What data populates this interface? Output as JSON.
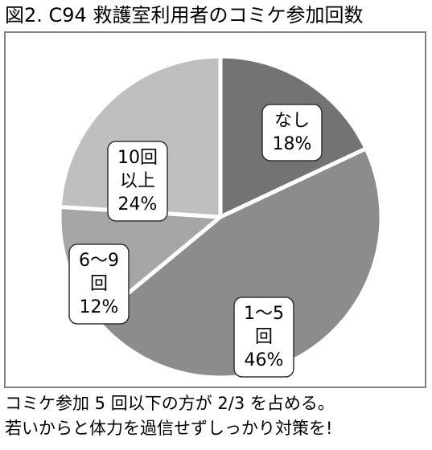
{
  "title": "図2. C94 救護室利用者のコミケ参加回数",
  "caption": {
    "line1": "コミケ参加 5 回以下の方が 2/3 を占める。",
    "line2": "若いからと体力を過信せずしっかり対策を!"
  },
  "colors": {
    "border": "#808080",
    "label_box_stroke": "#333333"
  },
  "chart_data": {
    "type": "pie",
    "title": "図2. C94 救護室利用者のコミケ参加回数",
    "slices": [
      {
        "label_lines": [
          "なし"
        ],
        "value": 18,
        "value_label": "18%",
        "color": "#737373"
      },
      {
        "label_lines": [
          "1～5",
          "回"
        ],
        "value": 46,
        "value_label": "46%",
        "color": "#8c8c8c"
      },
      {
        "label_lines": [
          "6～9",
          "回"
        ],
        "value": 12,
        "value_label": "12%",
        "color": "#a6a6a6"
      },
      {
        "label_lines": [
          "10回",
          "以上"
        ],
        "value": 24,
        "value_label": "24%",
        "color": "#bfbfbf"
      }
    ],
    "start_angle_deg": 0,
    "direction": "clockwise",
    "legend": "none"
  }
}
